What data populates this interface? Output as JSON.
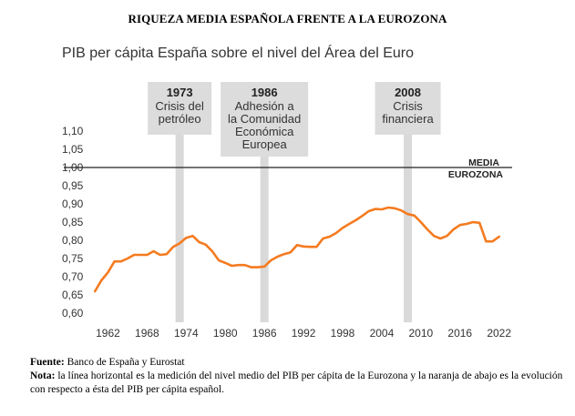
{
  "page": {
    "title": "RIQUEZA MEDIA ESPAÑOLA FRENTE A LA EUROZONA",
    "source_label": "Fuente:",
    "source_text": " Banco de España y Eurostat",
    "note_label": "Nota:",
    "note_text": " la línea horizontal es la medición del nivel medio del PIB per cápita de la Eurozona y la naranja de abajo es la evolución con respecto a ésta del PIB per cápita español."
  },
  "chart_data": {
    "type": "line",
    "title": "",
    "subtitle": "PIB per cápita España sobre el nivel del Área del Euro",
    "xlabel": "",
    "ylabel": "",
    "xlim": [
      1959,
      2024
    ],
    "ylim": [
      0.6,
      1.1
    ],
    "y_ticks": [
      "0,60",
      "0,65",
      "0,70",
      "0,75",
      "0,80",
      "0,85",
      "0,90",
      "0,95",
      "1,00",
      "1,05",
      "1,10"
    ],
    "x_ticks": [
      "1962",
      "1968",
      "1974",
      "1980",
      "1986",
      "1992",
      "1998",
      "2004",
      "2010",
      "2016",
      "2022"
    ],
    "series_color": "#f47b20",
    "reference_line": {
      "y": 1.0,
      "label_line1": "MEDIA",
      "label_line2": "EUROZONA",
      "color": "#222222"
    },
    "events": [
      {
        "year": 1973,
        "label_year": "1973",
        "label_lines": [
          "Crisis del",
          "petróleo"
        ]
      },
      {
        "year": 1986,
        "label_year": "1986",
        "label_lines": [
          "Adhesión a",
          "la Comunidad",
          "Económica",
          "Europea"
        ]
      },
      {
        "year": 2008,
        "label_year": "2008",
        "label_lines": [
          "Crisis",
          "financiera"
        ]
      }
    ],
    "x": [
      1960,
      1961,
      1962,
      1963,
      1964,
      1965,
      1966,
      1967,
      1968,
      1969,
      1970,
      1971,
      1972,
      1973,
      1974,
      1975,
      1976,
      1977,
      1978,
      1979,
      1980,
      1981,
      1982,
      1983,
      1984,
      1985,
      1986,
      1987,
      1988,
      1989,
      1990,
      1991,
      1992,
      1993,
      1994,
      1995,
      1996,
      1997,
      1998,
      1999,
      2000,
      2001,
      2002,
      2003,
      2004,
      2005,
      2006,
      2007,
      2008,
      2009,
      2010,
      2011,
      2012,
      2013,
      2014,
      2015,
      2016,
      2017,
      2018,
      2019,
      2020,
      2021,
      2022
    ],
    "y": [
      0.66,
      0.69,
      0.712,
      0.742,
      0.742,
      0.75,
      0.76,
      0.76,
      0.76,
      0.77,
      0.76,
      0.762,
      0.782,
      0.792,
      0.807,
      0.812,
      0.795,
      0.788,
      0.77,
      0.745,
      0.738,
      0.73,
      0.732,
      0.732,
      0.726,
      0.726,
      0.728,
      0.745,
      0.755,
      0.762,
      0.767,
      0.787,
      0.783,
      0.782,
      0.782,
      0.805,
      0.81,
      0.82,
      0.834,
      0.845,
      0.855,
      0.867,
      0.88,
      0.886,
      0.885,
      0.89,
      0.888,
      0.882,
      0.872,
      0.868,
      0.85,
      0.83,
      0.812,
      0.805,
      0.812,
      0.83,
      0.842,
      0.845,
      0.85,
      0.848,
      0.797,
      0.797,
      0.81
    ]
  }
}
